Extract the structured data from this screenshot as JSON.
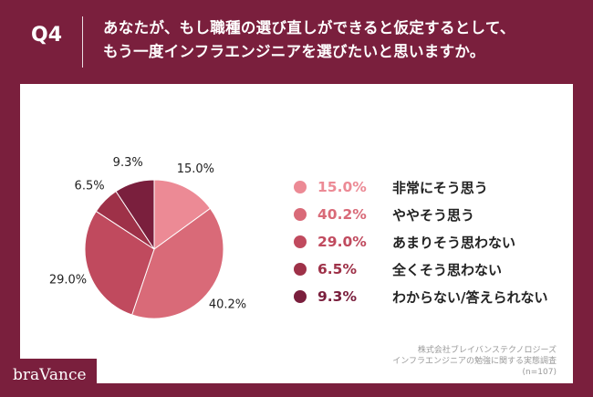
{
  "header": {
    "question_number": "Q4",
    "question_line1": "あなたが、もし職種の選び直しができると仮定するとして、",
    "question_line2": "もう一度インフラエンジニアを選びたいと思いますか。"
  },
  "chart_data": {
    "type": "pie",
    "categories": [
      "非常にそう思う",
      "ややそう思う",
      "あまりそう思わない",
      "全くそう思わない",
      "わからない/答えられない"
    ],
    "values": [
      15.0,
      40.2,
      29.0,
      6.5,
      9.3
    ],
    "value_labels": [
      "15.0%",
      "40.2%",
      "29.0%",
      "6.5%",
      "9.3%"
    ],
    "pie_labels": [
      "15.0%",
      "40.2%",
      "29.0%",
      "6.5%",
      "9.3%"
    ],
    "colors": [
      "#ec8a95",
      "#d96a78",
      "#c04a5e",
      "#9e3148",
      "#7a1f3d"
    ],
    "legend_position": "right"
  },
  "source": {
    "line1": "株式会社ブレイバンステクノロジーズ",
    "line2": "インフラエンジニアの勉強に関する実態調査",
    "line3": "(n=107)"
  },
  "logo": {
    "text": "braVance"
  },
  "colors": {
    "brand": "#7a1f3d",
    "panel": "#ffffff"
  }
}
